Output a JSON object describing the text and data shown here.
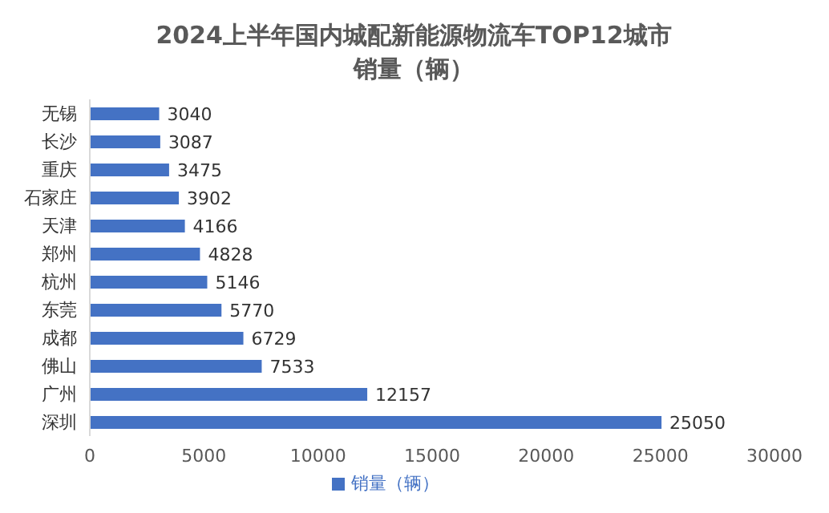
{
  "chart_data": {
    "type": "bar",
    "orientation": "horizontal",
    "title": "2024上半年国内城配新能源物流车TOP12城市销量（辆）",
    "categories": [
      "无锡",
      "长沙",
      "重庆",
      "石家庄",
      "天津",
      "郑州",
      "杭州",
      "东莞",
      "成都",
      "佛山",
      "广州",
      "深圳"
    ],
    "series": [
      {
        "name": "销量（辆）",
        "color": "#4472c4",
        "values": [
          3040,
          3087,
          3475,
          3902,
          4166,
          4828,
          5146,
          5770,
          6729,
          7533,
          12157,
          25050
        ]
      }
    ],
    "xlim": [
      0,
      30000
    ],
    "xticks": [
      0,
      5000,
      10000,
      15000,
      20000,
      25000,
      30000
    ],
    "data_labels": true,
    "legend": "bottom",
    "grid": false
  }
}
